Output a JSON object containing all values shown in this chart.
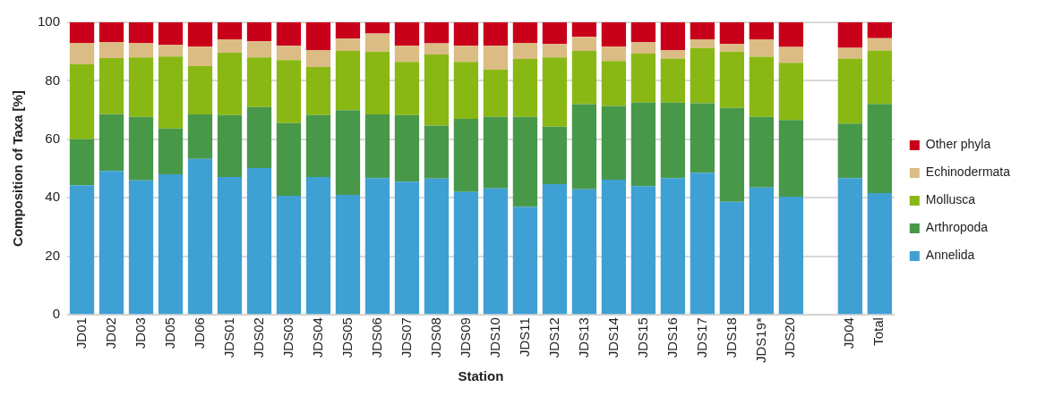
{
  "chart_data": {
    "type": "bar",
    "stacked": true,
    "xlabel": "Station",
    "ylabel": "Composition of Taxa [%]",
    "categories": [
      "JD01",
      "JD02",
      "JD03",
      "JD05",
      "JD06",
      "JDS01",
      "JDS02",
      "JDS03",
      "JDS04",
      "JDS05",
      "JDS06",
      "JDS07",
      "JDS08",
      "JDS09",
      "JDS10",
      "JDS11",
      "JDS12",
      "JDS13",
      "JDS14",
      "JDS15",
      "JDS16",
      "JDS17",
      "JDS18",
      "JDS19*",
      "JDS20",
      null,
      "JD04",
      "Total"
    ],
    "series": [
      {
        "name": "Annelida",
        "color": "#3fa0d3",
        "values": [
          44.3,
          49.2,
          46,
          48,
          53.3,
          47.1,
          50.2,
          40.7,
          47.1,
          41,
          46.7,
          45.5,
          46.6,
          42,
          43.2,
          36.9,
          44.7,
          42.9,
          46.2,
          44,
          46.7,
          48.6,
          38.6,
          43.5,
          40.4,
          null,
          46.7,
          41.6
        ]
      },
      {
        "name": "Arthropoda",
        "color": "#48984a",
        "values": [
          15.7,
          19.4,
          21.7,
          15.7,
          15.2,
          21.2,
          20.8,
          24.8,
          21.2,
          29,
          21.8,
          22.8,
          18.1,
          25,
          24.5,
          30.8,
          19.6,
          29.1,
          25.2,
          28.6,
          25.9,
          23.7,
          32.1,
          24.2,
          26.2,
          null,
          18.7,
          30.5
        ]
      },
      {
        "name": "Mollusca",
        "color": "#89b814",
        "values": [
          25.6,
          19.2,
          20.3,
          24.6,
          16.5,
          21.3,
          17,
          21.6,
          16.4,
          20.2,
          21.5,
          18.2,
          24.3,
          19.5,
          16.1,
          19.8,
          23.7,
          18.2,
          15.4,
          16.7,
          15,
          18.9,
          19.3,
          20.5,
          19.6,
          null,
          22.2,
          18.3
        ]
      },
      {
        "name": "Echinodermata",
        "color": "#dbbc84",
        "values": [
          7.4,
          5.5,
          5,
          4,
          6.7,
          4.6,
          5.5,
          4.9,
          5.8,
          4.2,
          6.2,
          5.5,
          3.8,
          5.5,
          8.2,
          5.5,
          4.6,
          4.8,
          4.9,
          3.9,
          2.9,
          3,
          2.6,
          6,
          5.4,
          null,
          3.7,
          4.2
        ]
      },
      {
        "name": "Other phyla",
        "color": "#c9001a",
        "values": [
          7,
          6.7,
          7,
          7.7,
          8.3,
          5.8,
          6.5,
          8,
          9.5,
          5.6,
          3.8,
          8,
          7.2,
          8,
          8,
          7,
          7.4,
          5,
          8.3,
          6.8,
          9.5,
          5.8,
          7.4,
          5.8,
          8.4,
          null,
          8.7,
          5.4
        ]
      }
    ],
    "ylim": [
      0,
      100
    ],
    "yticks": [
      0,
      20,
      40,
      60,
      80,
      100
    ],
    "grid": "y",
    "legend": "right"
  }
}
